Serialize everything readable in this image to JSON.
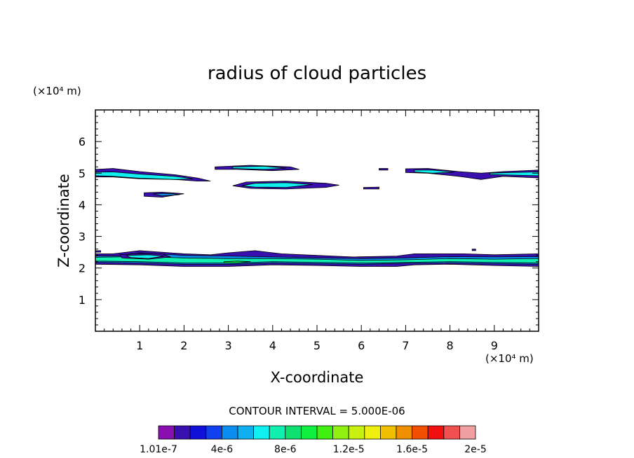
{
  "chart_data": {
    "type": "contour",
    "title": "radius of cloud particles",
    "xlabel": "X-coordinate",
    "ylabel": "Z-coordinate",
    "x_unit": "(×10⁴ m)",
    "y_unit": "(×10⁴ m)",
    "xlim": [
      0,
      10
    ],
    "ylim": [
      0,
      7
    ],
    "x_ticks": [
      1,
      2,
      3,
      4,
      5,
      6,
      7,
      8,
      9
    ],
    "y_ticks": [
      1,
      2,
      3,
      4,
      5,
      6
    ],
    "contour_interval_text": "CONTOUR INTERVAL = 5.000E-06",
    "colorbar": {
      "labels": [
        "1.01e-7",
        "4e-6",
        "8e-6",
        "1.2e-5",
        "1.6e-5",
        "2e-5"
      ],
      "colors": [
        "#8a0fb0",
        "#3a0fb0",
        "#1010d8",
        "#1040f0",
        "#0c8ef0",
        "#10b0f0",
        "#10f0f0",
        "#10f0b0",
        "#10e070",
        "#10f040",
        "#40f010",
        "#90f010",
        "#c8f010",
        "#f0f010",
        "#f0c000",
        "#f09000",
        "#f05000",
        "#f01010",
        "#f05050",
        "#f0a0a0"
      ]
    },
    "regions": [
      {
        "level": 1,
        "z": 5.0,
        "points": [
          [
            0,
            5.12
          ],
          [
            0.4,
            5.15
          ],
          [
            1.0,
            5.05
          ],
          [
            1.8,
            4.95
          ],
          [
            2.3,
            4.85
          ],
          [
            2.6,
            4.75
          ],
          [
            2.3,
            4.75
          ],
          [
            1.8,
            4.8
          ],
          [
            1.0,
            4.82
          ],
          [
            0.4,
            4.88
          ],
          [
            0,
            4.88
          ]
        ]
      },
      {
        "level": 6,
        "z": 4.95,
        "points": [
          [
            0,
            5.03
          ],
          [
            0.4,
            5.04
          ],
          [
            1.0,
            4.97
          ],
          [
            1.8,
            4.9
          ],
          [
            2.2,
            4.82
          ],
          [
            1.8,
            4.8
          ],
          [
            1.0,
            4.84
          ],
          [
            0.4,
            4.9
          ],
          [
            0,
            4.92
          ]
        ]
      },
      {
        "level": 1,
        "z": 4.3,
        "points": [
          [
            1.1,
            4.38
          ],
          [
            1.5,
            4.4
          ],
          [
            2.0,
            4.35
          ],
          [
            1.5,
            4.24
          ],
          [
            1.1,
            4.27
          ]
        ]
      },
      {
        "level": 4,
        "z": 4.3,
        "points": [
          [
            1.3,
            4.35
          ],
          [
            1.7,
            4.36
          ],
          [
            1.9,
            4.32
          ],
          [
            1.5,
            4.28
          ]
        ]
      },
      {
        "level": 1,
        "z": 5.15,
        "points": [
          [
            2.7,
            5.2
          ],
          [
            3.5,
            5.25
          ],
          [
            4.4,
            5.2
          ],
          [
            4.6,
            5.12
          ],
          [
            4.0,
            5.08
          ],
          [
            3.2,
            5.12
          ],
          [
            2.7,
            5.12
          ]
        ]
      },
      {
        "level": 6,
        "z": 5.15,
        "points": [
          [
            3.1,
            5.2
          ],
          [
            3.8,
            5.22
          ],
          [
            4.3,
            5.16
          ],
          [
            3.8,
            5.12
          ],
          [
            3.1,
            5.15
          ]
        ]
      },
      {
        "level": 1,
        "z": 4.6,
        "points": [
          [
            3.1,
            4.6
          ],
          [
            3.4,
            4.72
          ],
          [
            4.3,
            4.75
          ],
          [
            5.2,
            4.68
          ],
          [
            5.5,
            4.62
          ],
          [
            5.2,
            4.55
          ],
          [
            4.3,
            4.5
          ],
          [
            3.5,
            4.52
          ]
        ]
      },
      {
        "level": 6,
        "z": 4.6,
        "points": [
          [
            3.3,
            4.6
          ],
          [
            3.6,
            4.68
          ],
          [
            4.3,
            4.7
          ],
          [
            4.9,
            4.64
          ],
          [
            4.3,
            4.55
          ],
          [
            3.6,
            4.56
          ]
        ]
      },
      {
        "level": 1,
        "z": 4.5,
        "points": [
          [
            6.05,
            4.55
          ],
          [
            6.4,
            4.56
          ],
          [
            6.4,
            4.5
          ],
          [
            6.05,
            4.5
          ]
        ]
      },
      {
        "level": 1,
        "z": 5.1,
        "points": [
          [
            6.4,
            5.15
          ],
          [
            6.6,
            5.15
          ],
          [
            6.6,
            5.1
          ],
          [
            6.4,
            5.1
          ]
        ]
      },
      {
        "level": 1,
        "z": 5.0,
        "points": [
          [
            7.0,
            5.14
          ],
          [
            7.5,
            5.15
          ],
          [
            8.2,
            5.05
          ],
          [
            8.7,
            5.0
          ],
          [
            9.2,
            5.05
          ],
          [
            10,
            5.1
          ],
          [
            10,
            4.85
          ],
          [
            9.2,
            4.9
          ],
          [
            8.7,
            4.8
          ],
          [
            8.2,
            4.9
          ],
          [
            7.5,
            5.0
          ],
          [
            7.0,
            5.02
          ]
        ]
      },
      {
        "level": 6,
        "z": 5.0,
        "points": [
          [
            7.2,
            5.1
          ],
          [
            7.6,
            5.1
          ],
          [
            8.1,
            5.03
          ],
          [
            7.6,
            5.0
          ],
          [
            7.2,
            5.04
          ]
        ]
      },
      {
        "level": 6,
        "z": 5.0,
        "points": [
          [
            8.9,
            5.0
          ],
          [
            9.4,
            5.02
          ],
          [
            10,
            5.04
          ],
          [
            10,
            4.92
          ],
          [
            9.4,
            4.94
          ],
          [
            8.9,
            4.96
          ]
        ]
      },
      {
        "level": 1,
        "z": 2.25,
        "points": [
          [
            0,
            2.45
          ],
          [
            0.4,
            2.45
          ],
          [
            1.0,
            2.55
          ],
          [
            2.0,
            2.45
          ],
          [
            2.6,
            2.42
          ],
          [
            3.0,
            2.48
          ],
          [
            3.6,
            2.55
          ],
          [
            4.2,
            2.45
          ],
          [
            5.0,
            2.4
          ],
          [
            5.8,
            2.35
          ],
          [
            6.8,
            2.38
          ],
          [
            7.2,
            2.45
          ],
          [
            8.3,
            2.45
          ],
          [
            9.0,
            2.42
          ],
          [
            10,
            2.45
          ],
          [
            10,
            2.05
          ],
          [
            9.0,
            2.08
          ],
          [
            8.0,
            2.12
          ],
          [
            7.2,
            2.1
          ],
          [
            6.8,
            2.05
          ],
          [
            6.0,
            2.05
          ],
          [
            5.0,
            2.08
          ],
          [
            4.0,
            2.1
          ],
          [
            3.0,
            2.05
          ],
          [
            2.0,
            2.05
          ],
          [
            1.0,
            2.1
          ],
          [
            0,
            2.12
          ]
        ]
      },
      {
        "level": 4,
        "z": 2.25,
        "points": [
          [
            0,
            2.38
          ],
          [
            0.6,
            2.38
          ],
          [
            1.0,
            2.48
          ],
          [
            2.0,
            2.4
          ],
          [
            3.0,
            2.38
          ],
          [
            4.0,
            2.35
          ],
          [
            5.0,
            2.32
          ],
          [
            6.0,
            2.3
          ],
          [
            7.0,
            2.32
          ],
          [
            8.0,
            2.36
          ],
          [
            9.0,
            2.35
          ],
          [
            10,
            2.36
          ],
          [
            10,
            2.12
          ],
          [
            9.0,
            2.14
          ],
          [
            8.0,
            2.16
          ],
          [
            7.0,
            2.15
          ],
          [
            6.0,
            2.12
          ],
          [
            5.0,
            2.14
          ],
          [
            4.0,
            2.16
          ],
          [
            3.0,
            2.12
          ],
          [
            2.0,
            2.12
          ],
          [
            1.0,
            2.16
          ],
          [
            0,
            2.18
          ]
        ]
      },
      {
        "level": 7,
        "z": 2.25,
        "points": [
          [
            0,
            2.34
          ],
          [
            1.0,
            2.36
          ],
          [
            2.0,
            2.32
          ],
          [
            3.0,
            2.3
          ],
          [
            4.0,
            2.3
          ],
          [
            5.0,
            2.28
          ],
          [
            6.0,
            2.24
          ],
          [
            7.0,
            2.26
          ],
          [
            8.0,
            2.3
          ],
          [
            9.0,
            2.28
          ],
          [
            10,
            2.3
          ],
          [
            10,
            2.16
          ],
          [
            9.0,
            2.18
          ],
          [
            8.0,
            2.2
          ],
          [
            7.0,
            2.18
          ],
          [
            6.0,
            2.16
          ],
          [
            5.0,
            2.18
          ],
          [
            4.0,
            2.2
          ],
          [
            3.0,
            2.16
          ],
          [
            2.0,
            2.16
          ],
          [
            1.0,
            2.2
          ],
          [
            0,
            2.22
          ]
        ]
      },
      {
        "level": 1,
        "z": 2.3,
        "points": [
          [
            0.55,
            2.42
          ],
          [
            1.0,
            2.46
          ],
          [
            1.5,
            2.45
          ],
          [
            1.7,
            2.35
          ],
          [
            1.2,
            2.28
          ],
          [
            0.6,
            2.32
          ]
        ]
      },
      {
        "level": 6,
        "z": 2.3,
        "points": [
          [
            0.7,
            2.4
          ],
          [
            1.2,
            2.42
          ],
          [
            1.55,
            2.38
          ],
          [
            1.2,
            2.3
          ],
          [
            0.8,
            2.33
          ]
        ]
      },
      {
        "level": 9,
        "z": 2.2,
        "points": [
          [
            2.9,
            2.2
          ],
          [
            3.2,
            2.22
          ],
          [
            3.5,
            2.2
          ],
          [
            3.2,
            2.16
          ],
          [
            2.9,
            2.16
          ]
        ]
      },
      {
        "level": 1,
        "z": 2.55,
        "points": [
          [
            0,
            2.55
          ],
          [
            0.12,
            2.55
          ],
          [
            0.12,
            2.5
          ],
          [
            0,
            2.5
          ]
        ]
      },
      {
        "level": 1,
        "z": 2.58,
        "points": [
          [
            8.5,
            2.6
          ],
          [
            8.58,
            2.6
          ],
          [
            8.58,
            2.55
          ],
          [
            8.5,
            2.55
          ]
        ]
      }
    ]
  }
}
